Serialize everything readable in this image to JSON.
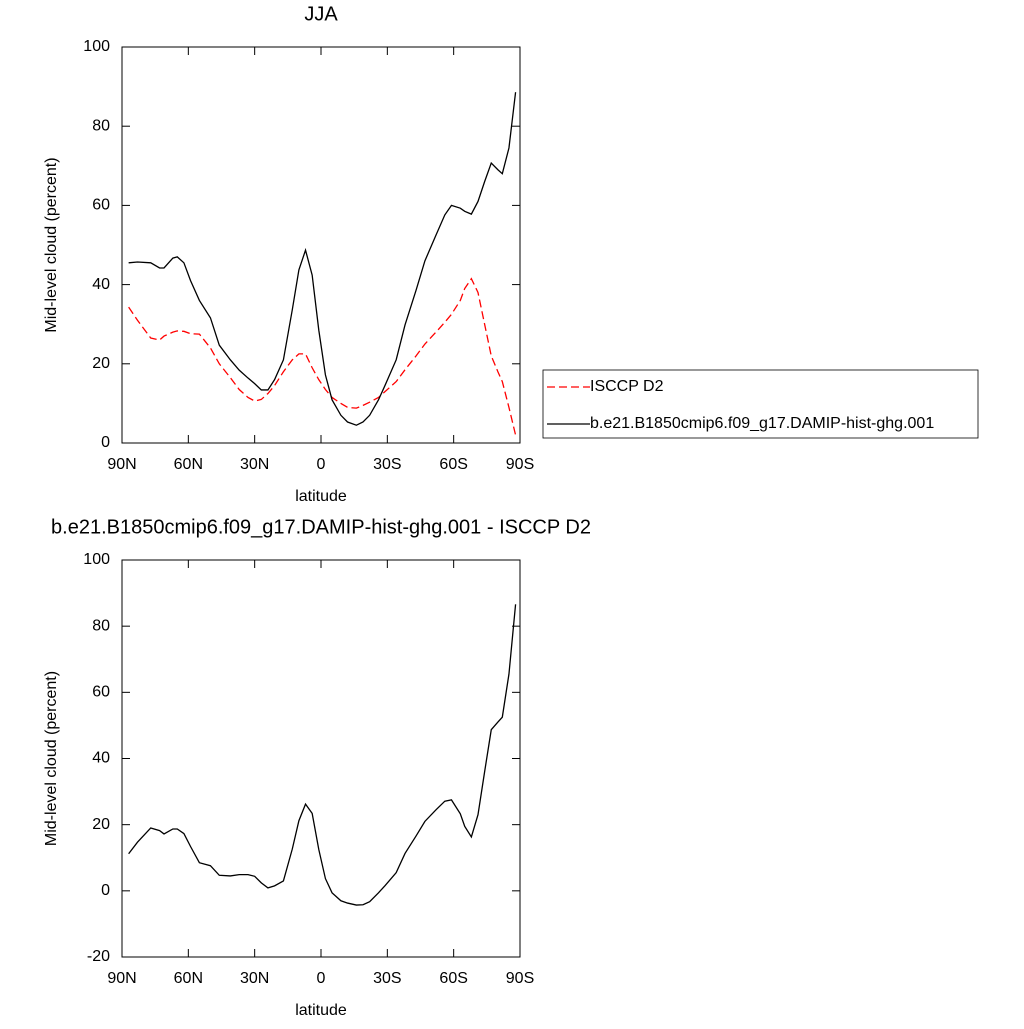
{
  "chart_data": [
    {
      "type": "line",
      "title": "JJA",
      "xlabel": "latitude",
      "ylabel": "Mid-level cloud (percent)",
      "x": [
        87,
        83,
        77,
        73,
        71,
        67,
        65,
        62,
        59,
        55,
        50,
        46,
        41,
        37,
        33,
        30,
        27,
        24,
        21,
        17,
        13,
        10,
        7,
        4,
        1,
        -2,
        -5,
        -9,
        -12,
        -16,
        -19,
        -22,
        -26,
        -29,
        -34,
        -38,
        -43,
        -47,
        -52,
        -56,
        -59,
        -63,
        -65,
        -68,
        -71,
        -74,
        -77,
        -80,
        -82,
        -85,
        -88
      ],
      "series": [
        {
          "name": "ISCCP D2",
          "color": "#ff0000",
          "style": "dashed",
          "values": [
            34.3,
            31,
            26.5,
            26,
            27,
            28,
            28.3,
            28.2,
            27.6,
            27.5,
            24,
            20,
            16.5,
            13.5,
            11.5,
            10.6,
            11,
            12.5,
            14.5,
            18,
            21,
            22.5,
            22.5,
            19,
            16,
            13.5,
            11.5,
            10,
            9,
            8.8,
            9.5,
            10.3,
            11.5,
            13,
            15.5,
            18.5,
            22,
            25,
            28,
            30.5,
            32.5,
            36,
            39,
            41.5,
            38,
            30,
            22,
            18,
            15.5,
            9,
            2
          ]
        },
        {
          "name": "b.e21.B1850cmip6.f09_g17.DAMIP-hist-ghg.001",
          "color": "#000000",
          "style": "solid",
          "values": [
            45.5,
            45.7,
            45.5,
            44.2,
            44.2,
            46.7,
            47,
            45.5,
            41,
            36,
            31.6,
            24.7,
            21,
            18.4,
            16.4,
            15,
            13.4,
            13.4,
            16,
            21,
            33.6,
            43.7,
            48.7,
            42.4,
            28.5,
            17.2,
            10.9,
            7,
            5.3,
            4.5,
            5.3,
            7,
            10.9,
            14.6,
            21,
            29.8,
            38.6,
            46,
            52.5,
            57.6,
            60,
            59.3,
            58.5,
            57.8,
            61,
            66,
            70.7,
            69,
            68,
            74.5,
            88.6
          ]
        }
      ],
      "xlim": [
        90,
        -90
      ],
      "xticks": [
        {
          "value": 90,
          "label": "90N"
        },
        {
          "value": 60,
          "label": "60N"
        },
        {
          "value": 30,
          "label": "30N"
        },
        0,
        {
          "value": -30,
          "label": "30S"
        },
        {
          "value": -60,
          "label": "60S"
        },
        {
          "value": -90,
          "label": "90S"
        }
      ],
      "ylim": [
        0,
        100
      ],
      "yticks": [
        0,
        20,
        40,
        60,
        80,
        100
      ],
      "legend": "right"
    },
    {
      "type": "line",
      "title": "b.e21.B1850cmip6.f09_g17.DAMIP-hist-ghg.001 - ISCCP D2",
      "xlabel": "latitude",
      "ylabel": "Mid-level cloud (percent)",
      "x": [
        87,
        83,
        77,
        73,
        71,
        67,
        65,
        62,
        59,
        55,
        50,
        46,
        41,
        37,
        33,
        30,
        27,
        24,
        21,
        17,
        13,
        10,
        7,
        4,
        1,
        -2,
        -5,
        -9,
        -12,
        -16,
        -19,
        -22,
        -26,
        -29,
        -34,
        -38,
        -43,
        -47,
        -52,
        -56,
        -59,
        -63,
        -65,
        -68,
        -71,
        -74,
        -77,
        -80,
        -82,
        -85,
        -88
      ],
      "series": [
        {
          "color": "#000000",
          "style": "solid",
          "values": [
            11.2,
            14.7,
            19,
            18.2,
            17.2,
            18.7,
            18.7,
            17.3,
            13.4,
            8.5,
            7.6,
            4.7,
            4.5,
            4.9,
            4.9,
            4.4,
            2.4,
            0.9,
            1.5,
            3,
            12.6,
            21.2,
            26.2,
            23.4,
            12.5,
            3.7,
            -0.6,
            -3,
            -3.7,
            -4.3,
            -4.2,
            -3.3,
            -0.6,
            1.6,
            5.5,
            11.3,
            16.6,
            21,
            24.5,
            27.1,
            27.5,
            23.3,
            19.5,
            16.3,
            23,
            36,
            48.7,
            51,
            52.5,
            65.5,
            86.6
          ]
        }
      ],
      "xlim": [
        90,
        -90
      ],
      "xticks": [
        {
          "value": 90,
          "label": "90N"
        },
        {
          "value": 60,
          "label": "60N"
        },
        {
          "value": 30,
          "label": "30N"
        },
        0,
        {
          "value": -30,
          "label": "30S"
        },
        {
          "value": -60,
          "label": "60S"
        },
        {
          "value": -90,
          "label": "90S"
        }
      ],
      "ylim": [
        -20,
        100
      ],
      "yticks": [
        -20,
        0,
        20,
        40,
        60,
        80,
        100
      ]
    }
  ]
}
